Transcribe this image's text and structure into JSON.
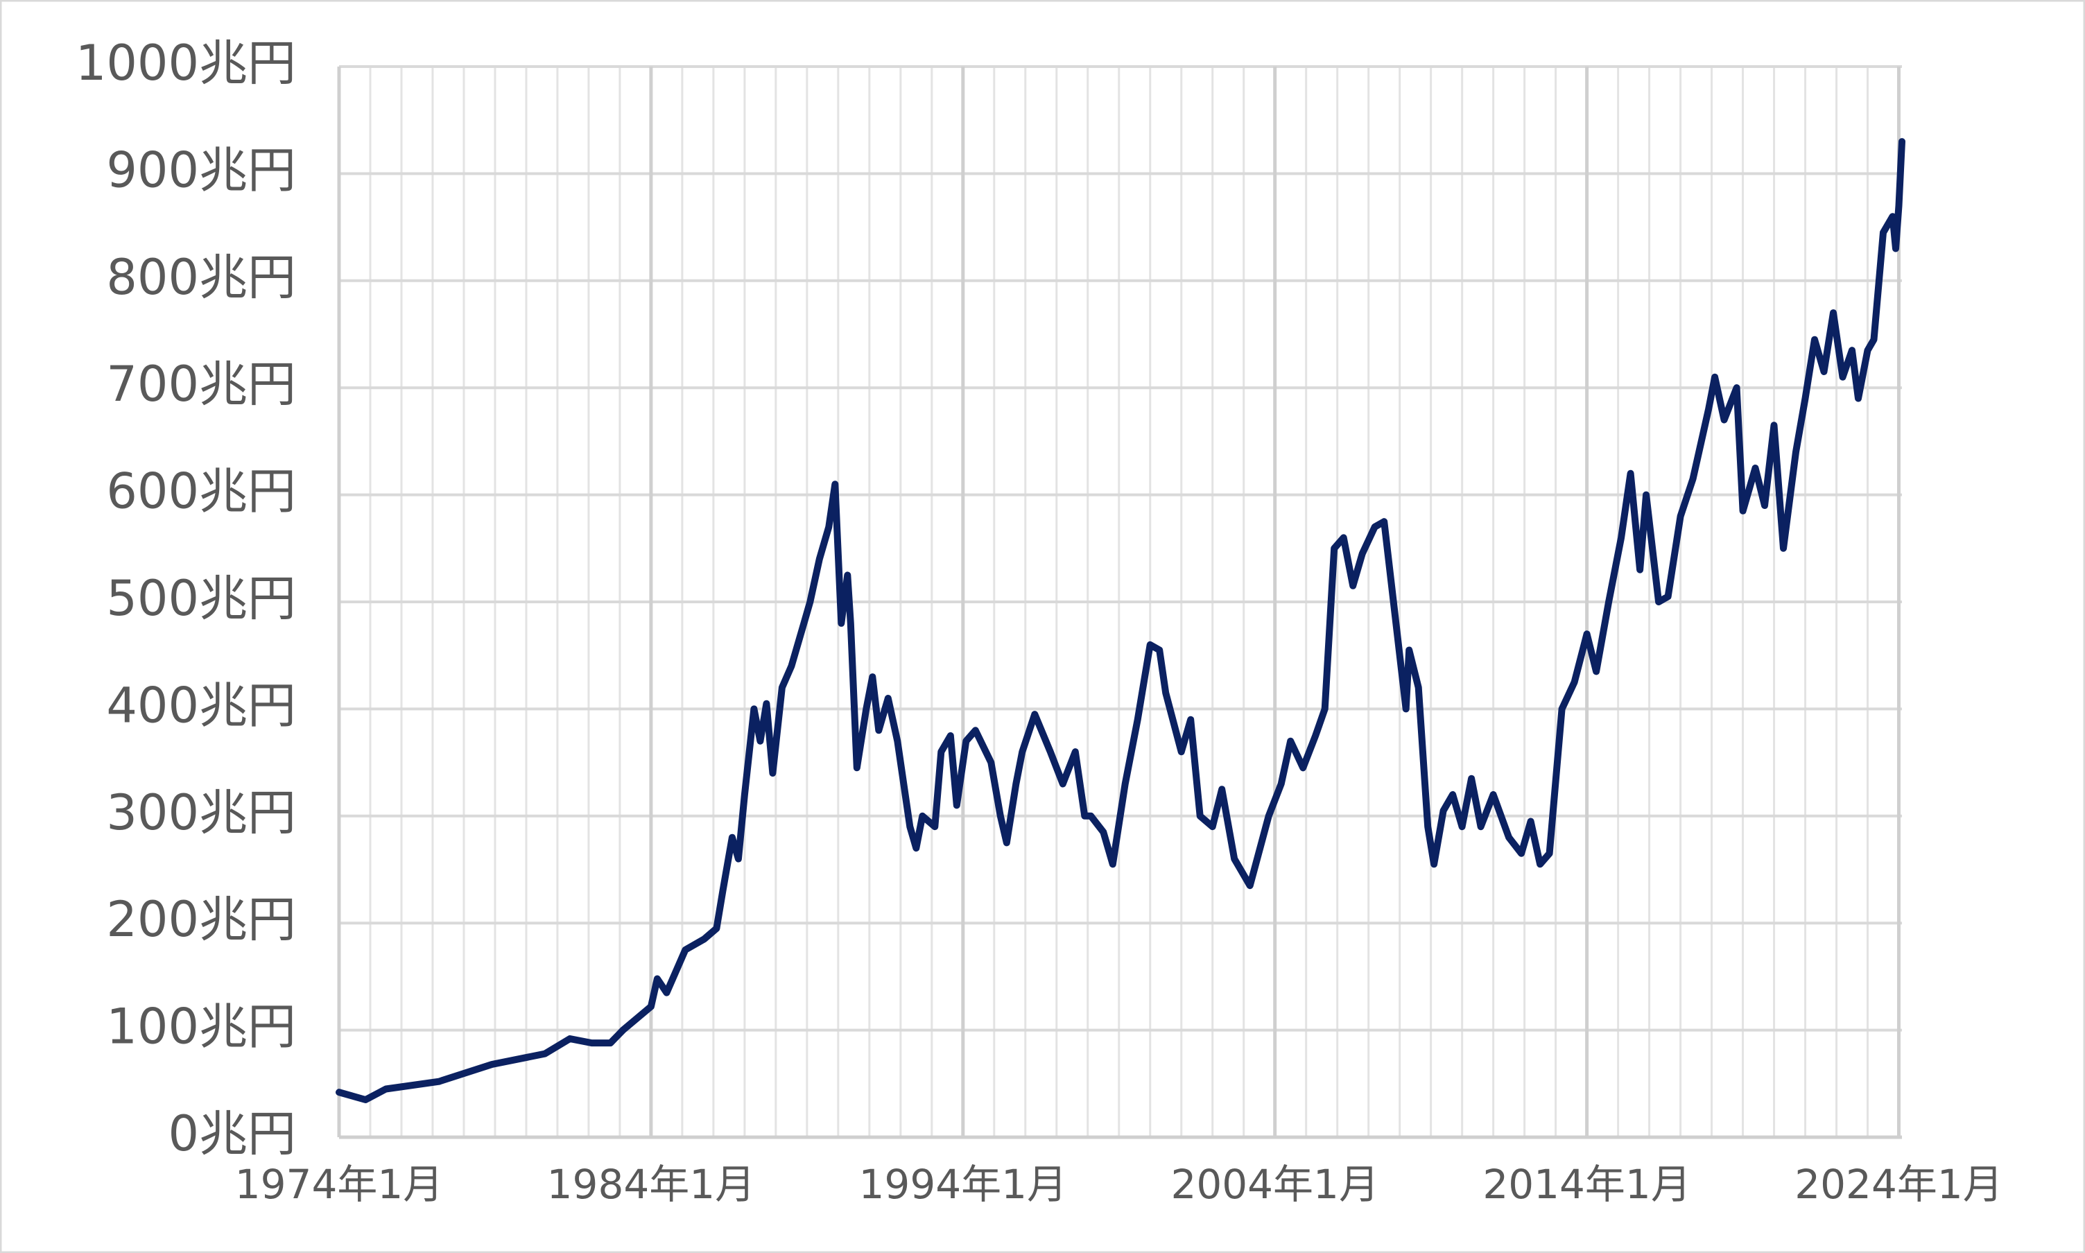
{
  "chart_data": {
    "type": "line",
    "x": [
      1974.0,
      1974.85,
      1975.5,
      1977.2,
      1978.9,
      1980.6,
      1981.4,
      1982.1,
      1982.7,
      1983.1,
      1984.0,
      1984.2,
      1984.5,
      1985.1,
      1985.7,
      1986.1,
      1986.3,
      1986.6,
      1986.8,
      1987.0,
      1987.3,
      1987.5,
      1987.7,
      1987.9,
      1988.2,
      1988.5,
      1988.9,
      1989.1,
      1989.4,
      1989.7,
      1989.9,
      1990.1,
      1990.3,
      1990.4,
      1990.6,
      1990.9,
      1991.1,
      1991.3,
      1991.6,
      1991.9,
      1992.3,
      1992.5,
      1992.7,
      1993.1,
      1993.3,
      1993.6,
      1993.8,
      1994.1,
      1994.4,
      1994.9,
      1995.2,
      1995.4,
      1995.7,
      1995.9,
      1996.3,
      1996.8,
      1997.2,
      1997.6,
      1997.9,
      1998.1,
      1998.5,
      1998.8,
      1999.2,
      1999.6,
      2000.0,
      2000.3,
      2000.5,
      2001.0,
      2001.3,
      2001.6,
      2002.0,
      2002.3,
      2002.7,
      2003.2,
      2003.8,
      2004.2,
      2004.5,
      2004.9,
      2005.3,
      2005.6,
      2005.9,
      2006.2,
      2006.5,
      2006.8,
      2007.2,
      2007.5,
      2007.8,
      2008.2,
      2008.3,
      2008.6,
      2008.9,
      2009.1,
      2009.4,
      2009.7,
      2010.0,
      2010.3,
      2010.6,
      2011.0,
      2011.5,
      2011.9,
      2012.2,
      2012.5,
      2012.8,
      2013.2,
      2013.6,
      2014.0,
      2014.3,
      2014.7,
      2015.1,
      2015.4,
      2015.7,
      2015.9,
      2016.3,
      2016.6,
      2017.0,
      2017.4,
      2017.9,
      2018.1,
      2018.4,
      2018.8,
      2019.0,
      2019.4,
      2019.7,
      2020.0,
      2020.3,
      2020.7,
      2021.0,
      2021.3,
      2021.6,
      2021.9,
      2022.2,
      2022.5,
      2022.7,
      2023.0,
      2023.2,
      2023.5,
      2023.8,
      2023.9,
      2024.0,
      2024.1
    ],
    "series": [
      {
        "color": "#0b2161",
        "values": [
          42,
          35,
          45,
          52,
          68,
          78,
          92,
          88,
          88,
          100,
          122,
          148,
          135,
          175,
          185,
          195,
          230,
          280,
          260,
          320,
          400,
          370,
          405,
          340,
          420,
          440,
          480,
          500,
          540,
          570,
          610,
          480,
          525,
          480,
          345,
          400,
          430,
          380,
          410,
          370,
          290,
          270,
          300,
          290,
          360,
          375,
          310,
          370,
          380,
          350,
          300,
          275,
          330,
          360,
          395,
          360,
          330,
          360,
          300,
          300,
          285,
          255,
          330,
          390,
          460,
          455,
          415,
          360,
          390,
          300,
          290,
          325,
          260,
          235,
          300,
          330,
          370,
          345,
          375,
          400,
          550,
          560,
          515,
          545,
          570,
          575,
          500,
          400,
          455,
          420,
          290,
          255,
          305,
          320,
          290,
          335,
          290,
          320,
          280,
          265,
          295,
          255,
          265,
          400,
          425,
          470,
          435,
          500,
          560,
          620,
          530,
          600,
          500,
          505,
          580,
          615,
          680,
          710,
          670,
          700,
          585,
          625,
          590,
          665,
          550,
          640,
          690,
          745,
          715,
          770,
          710,
          735,
          690,
          735,
          745,
          845,
          860,
          830,
          870,
          930
        ]
      }
    ],
    "xlim": [
      1974,
      2024.1
    ],
    "xticks": [
      {
        "value": 1974,
        "label": "1974年1月"
      },
      {
        "value": 1984,
        "label": "1984年1月"
      },
      {
        "value": 1994,
        "label": "1994年1月"
      },
      {
        "value": 2004,
        "label": "2004年1月"
      },
      {
        "value": 2014,
        "label": "2014年1月"
      },
      {
        "value": 2024,
        "label": "2024年1月"
      }
    ],
    "xminorticks": [
      1975,
      1976,
      1977,
      1978,
      1979,
      1980,
      1981,
      1982,
      1983,
      1985,
      1986,
      1987,
      1988,
      1989,
      1990,
      1991,
      1992,
      1993,
      1995,
      1996,
      1997,
      1998,
      1999,
      2000,
      2001,
      2002,
      2003,
      2005,
      2006,
      2007,
      2008,
      2009,
      2010,
      2011,
      2012,
      2013,
      2015,
      2016,
      2017,
      2018,
      2019,
      2020,
      2021,
      2022,
      2023
    ],
    "ylim": [
      0,
      1000
    ],
    "yticks": [
      {
        "value": 0,
        "label": "0兆円"
      },
      {
        "value": 100,
        "label": "100兆円"
      },
      {
        "value": 200,
        "label": "200兆円"
      },
      {
        "value": 300,
        "label": "300兆円"
      },
      {
        "value": 400,
        "label": "400兆円"
      },
      {
        "value": 500,
        "label": "500兆円"
      },
      {
        "value": 600,
        "label": "600兆円"
      },
      {
        "value": 700,
        "label": "700兆円"
      },
      {
        "value": 800,
        "label": "800兆円"
      },
      {
        "value": 900,
        "label": "900兆円"
      },
      {
        "value": 1000,
        "label": "1000兆円"
      }
    ],
    "grid": true
  }
}
